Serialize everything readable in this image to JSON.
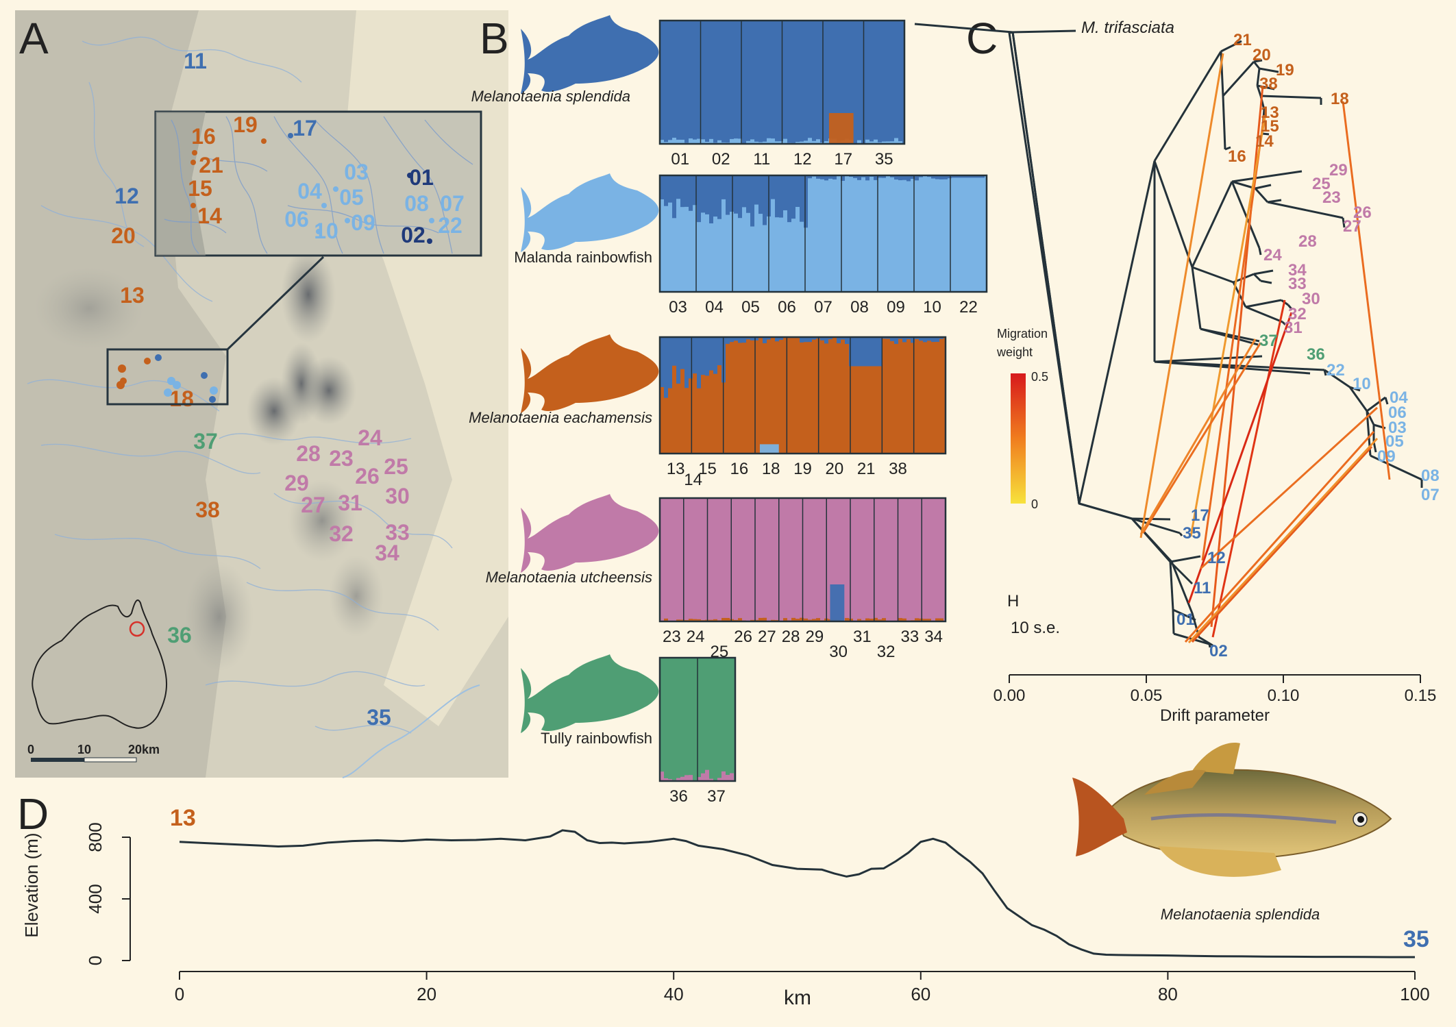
{
  "colors": {
    "splendida": "#3f6fb0",
    "malanda": "#7ab3e4",
    "eachamensis": "#c4601c",
    "utcheensis": "#c07aa8",
    "tully": "#4f9e74",
    "tree": "#24323a"
  },
  "panelA": {
    "label": "A",
    "scale": {
      "ticks": [
        "0",
        "10",
        "20km"
      ]
    },
    "sites": [
      {
        "id": "11",
        "group": "splendida",
        "x": 285,
        "y": 100
      },
      {
        "id": "12",
        "group": "splendida",
        "x": 185,
        "y": 297
      },
      {
        "id": "20",
        "group": "eachamensis",
        "x": 180,
        "y": 355
      },
      {
        "id": "13",
        "group": "eachamensis",
        "x": 193,
        "y": 442
      },
      {
        "id": "18",
        "group": "eachamensis",
        "x": 265,
        "y": 593
      },
      {
        "id": "37",
        "group": "tully",
        "x": 300,
        "y": 655
      },
      {
        "id": "38",
        "group": "eachamensis",
        "x": 303,
        "y": 755
      },
      {
        "id": "36",
        "group": "tully",
        "x": 262,
        "y": 938
      },
      {
        "id": "35",
        "group": "splendida",
        "x": 553,
        "y": 1058
      },
      {
        "id": "24",
        "group": "utcheensis",
        "x": 540,
        "y": 650
      },
      {
        "id": "28",
        "group": "utcheensis",
        "x": 450,
        "y": 673
      },
      {
        "id": "23",
        "group": "utcheensis",
        "x": 498,
        "y": 680
      },
      {
        "id": "25",
        "group": "utcheensis",
        "x": 578,
        "y": 692
      },
      {
        "id": "26",
        "group": "utcheensis",
        "x": 536,
        "y": 706
      },
      {
        "id": "29",
        "group": "utcheensis",
        "x": 433,
        "y": 716
      },
      {
        "id": "30",
        "group": "utcheensis",
        "x": 580,
        "y": 735
      },
      {
        "id": "27",
        "group": "utcheensis",
        "x": 457,
        "y": 748
      },
      {
        "id": "31",
        "group": "utcheensis",
        "x": 511,
        "y": 745
      },
      {
        "id": "32",
        "group": "utcheensis",
        "x": 498,
        "y": 790
      },
      {
        "id": "33",
        "group": "utcheensis",
        "x": 580,
        "y": 788
      },
      {
        "id": "34",
        "group": "utcheensis",
        "x": 565,
        "y": 818
      }
    ],
    "inset_sites": [
      {
        "id": "16",
        "group": "eachamensis",
        "x": 297,
        "y": 210
      },
      {
        "id": "19",
        "group": "eachamensis",
        "x": 358,
        "y": 193
      },
      {
        "id": "17",
        "group": "splendida",
        "x": 445,
        "y": 198
      },
      {
        "id": "21",
        "group": "eachamensis",
        "x": 308,
        "y": 252
      },
      {
        "id": "15",
        "group": "eachamensis",
        "x": 292,
        "y": 286
      },
      {
        "id": "14",
        "group": "eachamensis",
        "x": 306,
        "y": 326
      },
      {
        "id": "03",
        "group": "malanda",
        "x": 520,
        "y": 262
      },
      {
        "id": "01",
        "group": "tree",
        "x": 615,
        "y": 270
      },
      {
        "id": "04",
        "group": "malanda",
        "x": 452,
        "y": 290
      },
      {
        "id": "05",
        "group": "malanda",
        "x": 513,
        "y": 299
      },
      {
        "id": "08",
        "group": "malanda",
        "x": 608,
        "y": 308
      },
      {
        "id": "07",
        "group": "malanda",
        "x": 660,
        "y": 308
      },
      {
        "id": "06",
        "group": "malanda",
        "x": 433,
        "y": 331
      },
      {
        "id": "09",
        "group": "malanda",
        "x": 530,
        "y": 336
      },
      {
        "id": "22",
        "group": "malanda",
        "x": 657,
        "y": 340
      },
      {
        "id": "10",
        "group": "malanda",
        "x": 476,
        "y": 348
      },
      {
        "id": "02",
        "group": "tree",
        "x": 603,
        "y": 354
      }
    ]
  },
  "panelB": {
    "label": "B",
    "species": [
      {
        "name": "Melanotaenia splendida",
        "italic": true,
        "group": "splendida",
        "pops": [
          "01",
          "02",
          "11",
          "12",
          "17",
          "35"
        ]
      },
      {
        "name": "Malanda rainbowfish",
        "italic": false,
        "group": "malanda",
        "pops": [
          "03",
          "04",
          "05",
          "06",
          "07",
          "08",
          "09",
          "10",
          "22"
        ]
      },
      {
        "name": "Melanotaenia eachamensis",
        "italic": true,
        "group": "eachamensis",
        "pops": [
          "13",
          "14",
          "15",
          "16",
          "18",
          "19",
          "20",
          "21",
          "38"
        ]
      },
      {
        "name": "Melanotaenia utcheensis",
        "italic": true,
        "group": "utcheensis",
        "pops": [
          "23",
          "24",
          "25",
          "26",
          "27",
          "28",
          "29",
          "30",
          "31",
          "32",
          "33",
          "34"
        ]
      },
      {
        "name": "Tully rainbowfish",
        "italic": false,
        "group": "tully",
        "pops": [
          "36",
          "37"
        ]
      }
    ]
  },
  "panelC": {
    "label": "C",
    "outgroup": "M. trifasciata",
    "legend_title": [
      "Migration",
      "weight"
    ],
    "legend_ticks": [
      "0.5",
      "0"
    ],
    "scale_label": "H",
    "scale_text": "10 s.e.",
    "x_ticks": [
      "0.00",
      "0.05",
      "0.10",
      "0.15"
    ],
    "xlabel": "Drift parameter",
    "tips": [
      {
        "id": "21",
        "group": "eachamensis"
      },
      {
        "id": "20",
        "group": "eachamensis"
      },
      {
        "id": "19",
        "group": "eachamensis"
      },
      {
        "id": "38",
        "group": "eachamensis"
      },
      {
        "id": "18",
        "group": "eachamensis"
      },
      {
        "id": "13",
        "group": "eachamensis"
      },
      {
        "id": "15",
        "group": "eachamensis"
      },
      {
        "id": "14",
        "group": "eachamensis"
      },
      {
        "id": "16",
        "group": "eachamensis"
      },
      {
        "id": "29",
        "group": "utcheensis"
      },
      {
        "id": "25",
        "group": "utcheensis"
      },
      {
        "id": "23",
        "group": "utcheensis"
      },
      {
        "id": "26",
        "group": "utcheensis"
      },
      {
        "id": "27",
        "group": "utcheensis"
      },
      {
        "id": "28",
        "group": "utcheensis"
      },
      {
        "id": "24",
        "group": "utcheensis"
      },
      {
        "id": "34",
        "group": "utcheensis"
      },
      {
        "id": "33",
        "group": "utcheensis"
      },
      {
        "id": "30",
        "group": "utcheensis"
      },
      {
        "id": "32",
        "group": "utcheensis"
      },
      {
        "id": "31",
        "group": "utcheensis"
      },
      {
        "id": "37",
        "group": "tully"
      },
      {
        "id": "36",
        "group": "tully"
      },
      {
        "id": "22",
        "group": "malanda"
      },
      {
        "id": "10",
        "group": "malanda"
      },
      {
        "id": "04",
        "group": "malanda"
      },
      {
        "id": "06",
        "group": "malanda"
      },
      {
        "id": "03",
        "group": "malanda"
      },
      {
        "id": "05",
        "group": "malanda"
      },
      {
        "id": "09",
        "group": "malanda"
      },
      {
        "id": "08",
        "group": "malanda"
      },
      {
        "id": "07",
        "group": "malanda"
      },
      {
        "id": "17",
        "group": "splendida"
      },
      {
        "id": "35",
        "group": "splendida"
      },
      {
        "id": "12",
        "group": "splendida"
      },
      {
        "id": "11",
        "group": "splendida"
      },
      {
        "id": "01",
        "group": "splendida"
      },
      {
        "id": "02",
        "group": "splendida"
      }
    ]
  },
  "panelD": {
    "label": "D",
    "start_site": "13",
    "end_site": "35",
    "photo_caption": "Melanotaenia splendida"
  },
  "chart_data": {
    "type": "line",
    "title": "",
    "xlabel": "km",
    "ylabel": "Elevation (m)",
    "xlim": [
      0,
      100
    ],
    "ylim": [
      0,
      800
    ],
    "x_ticks": [
      0,
      20,
      40,
      60,
      80,
      100
    ],
    "y_ticks": [
      0,
      400,
      800
    ],
    "x": [
      0,
      2,
      4,
      6,
      8,
      10,
      12,
      14,
      16,
      18,
      20,
      22,
      24,
      26,
      28,
      30,
      31,
      32,
      33,
      34,
      35,
      36,
      38,
      40,
      41,
      42,
      44,
      46,
      48,
      50,
      52,
      53,
      54,
      55,
      56,
      57,
      58,
      59,
      60,
      61,
      62,
      63,
      64,
      65,
      66,
      67,
      68,
      69,
      70,
      71,
      72,
      73,
      74,
      75,
      76,
      78,
      80,
      82,
      84,
      86,
      88,
      90,
      92,
      94,
      96,
      98,
      100
    ],
    "y": [
      770,
      762,
      755,
      748,
      740,
      745,
      765,
      775,
      780,
      775,
      785,
      780,
      782,
      790,
      780,
      805,
      845,
      835,
      780,
      762,
      765,
      760,
      770,
      790,
      775,
      745,
      722,
      682,
      620,
      595,
      590,
      565,
      545,
      560,
      595,
      598,
      645,
      700,
      770,
      790,
      765,
      700,
      640,
      565,
      450,
      340,
      285,
      230,
      200,
      160,
      105,
      72,
      45,
      38,
      36,
      34,
      33,
      30,
      28,
      27,
      26,
      25,
      24,
      24,
      23,
      22,
      22
    ]
  }
}
